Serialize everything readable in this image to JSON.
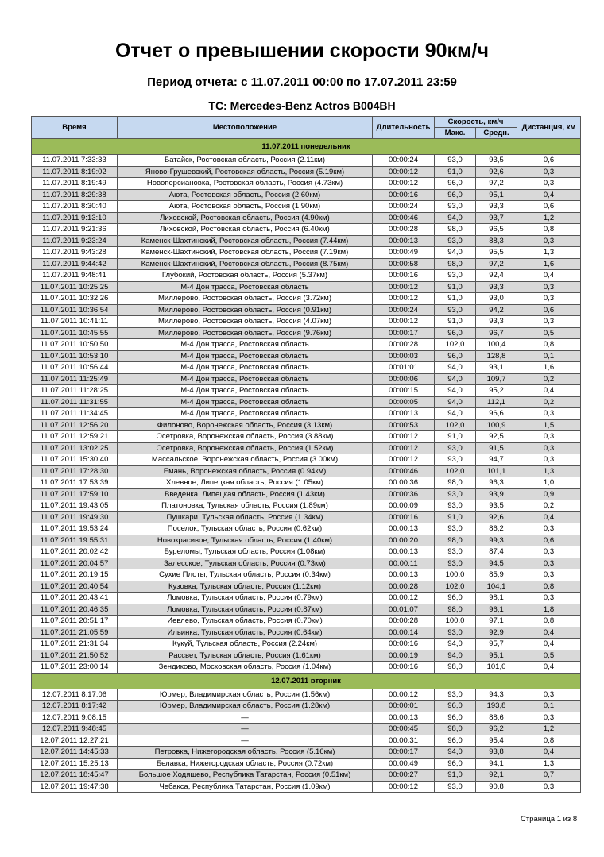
{
  "title": "Отчет о превышении скорости 90км/ч",
  "period": "Период отчета: с 11.07.2011 00:00 по 17.07.2011 23:59",
  "vehicle": "ТС: Mercedes-Benz Actros B004BH",
  "colors": {
    "header_bg": "#c6d9f0",
    "group_bg": "#9bbb59",
    "alt_row_bg": "#d9d9d9"
  },
  "columns": {
    "time": "Время",
    "location": "Местоположение",
    "duration": "Длительность",
    "speed": "Скорость, км/ч",
    "max": "Макс.",
    "avg": "Средн.",
    "distance": "Дистанция, км"
  },
  "groups": [
    {
      "label": "11.07.2011 понедельник",
      "rows": [
        [
          "11.07.2011 7:33:33",
          "Батайск, Ростовская область, Россия (2.11км)",
          "00:00:24",
          "93,0",
          "93,5",
          "0,6"
        ],
        [
          "11.07.2011 8:19:02",
          "Янов­о-Грушевский, Ростовская область, Россия (5.19км)",
          "00:00:12",
          "91,0",
          "92,6",
          "0,3"
        ],
        [
          "11.07.2011 8:19:49",
          "Новоперсиановка, Ростовская область, Россия (4.73км)",
          "00:00:12",
          "96,0",
          "97,2",
          "0,3"
        ],
        [
          "11.07.2011 8:29:38",
          "Аюта, Ростовская область, Россия (2.60км)",
          "00:00:16",
          "96,0",
          "95,1",
          "0,4"
        ],
        [
          "11.07.2011 8:30:40",
          "Аюта, Ростовская область, Россия (1.90км)",
          "00:00:24",
          "93,0",
          "93,3",
          "0,6"
        ],
        [
          "11.07.2011 9:13:10",
          "Лиховской, Ростовская область, Россия (4.90км)",
          "00:00:46",
          "94,0",
          "93,7",
          "1,2"
        ],
        [
          "11.07.2011 9:21:36",
          "Лиховской, Ростовская область, Россия (6.40км)",
          "00:00:28",
          "98,0",
          "96,5",
          "0,8"
        ],
        [
          "11.07.2011 9:23:24",
          "Каменск-Шахтинский, Ростовская область, Россия (7.44км)",
          "00:00:13",
          "93,0",
          "88,3",
          "0,3"
        ],
        [
          "11.07.2011 9:43:28",
          "Каменск-Шахтинский, Ростовская область, Россия (7.19км)",
          "00:00:49",
          "94,0",
          "95,5",
          "1,3"
        ],
        [
          "11.07.2011 9:44:42",
          "Каменск-Шахтинский, Ростовская область, Россия (8.75км)",
          "00:00:58",
          "98,0",
          "97,2",
          "1,6"
        ],
        [
          "11.07.2011 9:48:41",
          "Глубокий, Ростовская область, Россия (5.37км)",
          "00:00:16",
          "93,0",
          "92,4",
          "0,4"
        ],
        [
          "11.07.2011 10:25:25",
          "М-4 Дон трасса, Ростовская область",
          "00:00:12",
          "91,0",
          "93,3",
          "0,3"
        ],
        [
          "11.07.2011 10:32:26",
          "Миллерово, Ростовская область, Россия (3.72км)",
          "00:00:12",
          "91,0",
          "93,0",
          "0,3"
        ],
        [
          "11.07.2011 10:36:54",
          "Миллерово, Ростовская область, Россия (0.91км)",
          "00:00:24",
          "93,0",
          "94,2",
          "0,6"
        ],
        [
          "11.07.2011 10:41:11",
          "Миллерово, Ростовская область, Россия (4.07км)",
          "00:00:12",
          "91,0",
          "93,3",
          "0,3"
        ],
        [
          "11.07.2011 10:45:55",
          "Миллерово, Ростовская область, Россия (9.76км)",
          "00:00:17",
          "96,0",
          "96,7",
          "0,5"
        ],
        [
          "11.07.2011 10:50:50",
          "М-4 Дон трасса, Ростовская область",
          "00:00:28",
          "102,0",
          "100,4",
          "0,8"
        ],
        [
          "11.07.2011 10:53:10",
          "М-4 Дон трасса, Ростовская область",
          "00:00:03",
          "96,0",
          "128,8",
          "0,1"
        ],
        [
          "11.07.2011 10:56:44",
          "М-4 Дон трасса, Ростовская область",
          "00:01:01",
          "94,0",
          "93,1",
          "1,6"
        ],
        [
          "11.07.2011 11:25:49",
          "М-4 Дон трасса, Ростовская область",
          "00:00:06",
          "94,0",
          "109,7",
          "0,2"
        ],
        [
          "11.07.2011 11:28:25",
          "М-4 Дон трасса, Ростовская область",
          "00:00:15",
          "94,0",
          "95,2",
          "0,4"
        ],
        [
          "11.07.2011 11:31:55",
          "М-4 Дон трасса, Ростовская область",
          "00:00:05",
          "94,0",
          "112,1",
          "0,2"
        ],
        [
          "11.07.2011 11:34:45",
          "М-4 Дон трасса, Ростовская область",
          "00:00:13",
          "94,0",
          "96,6",
          "0,3"
        ],
        [
          "11.07.2011 12:56:20",
          "Филоново, Воронежская область, Россия (3.13км)",
          "00:00:53",
          "102,0",
          "100,9",
          "1,5"
        ],
        [
          "11.07.2011 12:59:21",
          "Осетровка, Воронежская область, Россия (3.88км)",
          "00:00:12",
          "91,0",
          "92,5",
          "0,3"
        ],
        [
          "11.07.2011 13:02:25",
          "Осетровка, Воронежская область, Россия (1.52км)",
          "00:00:12",
          "93,0",
          "91,5",
          "0,3"
        ],
        [
          "11.07.2011 15:30:40",
          "Массальское, Воронежская область, Россия (3.00км)",
          "00:00:12",
          "93,0",
          "94,7",
          "0,3"
        ],
        [
          "11.07.2011 17:28:30",
          "Емань, Воронежская область, Россия (0.94км)",
          "00:00:46",
          "102,0",
          "101,1",
          "1,3"
        ],
        [
          "11.07.2011 17:53:39",
          "Хлевное, Липецкая область, Россия (1.05км)",
          "00:00:36",
          "98,0",
          "96,3",
          "1,0"
        ],
        [
          "11.07.2011 17:59:10",
          "Введенка, Липецкая область, Россия (1.43км)",
          "00:00:36",
          "93,0",
          "93,9",
          "0,9"
        ],
        [
          "11.07.2011 19:43:05",
          "Платоновка, Тульская область, Россия (1.89км)",
          "00:00:09",
          "93,0",
          "93,5",
          "0,2"
        ],
        [
          "11.07.2011 19:49:30",
          "Пушкари, Тульская область, Россия (1.34км)",
          "00:00:16",
          "91,0",
          "92,6",
          "0,4"
        ],
        [
          "11.07.2011 19:53:24",
          "Поселок, Тульская область, Россия (0.62км)",
          "00:00:13",
          "93,0",
          "86,2",
          "0,3"
        ],
        [
          "11.07.2011 19:55:31",
          "Новокрасивое, Тульская область, Россия (1.40км)",
          "00:00:20",
          "98,0",
          "99,3",
          "0,6"
        ],
        [
          "11.07.2011 20:02:42",
          "Буреломы, Тульская область, Россия (1.08км)",
          "00:00:13",
          "93,0",
          "87,4",
          "0,3"
        ],
        [
          "11.07.2011 20:04:57",
          "Залесское, Тульская область, Россия (0.73км)",
          "00:00:11",
          "93,0",
          "94,5",
          "0,3"
        ],
        [
          "11.07.2011 20:19:15",
          "Сухие Плоты, Тульская область, Россия (0.34км)",
          "00:00:13",
          "100,0",
          "85,9",
          "0,3"
        ],
        [
          "11.07.2011 20:40:54",
          "Кузовка, Тульская область, Россия (1.12км)",
          "00:00:28",
          "102,0",
          "104,1",
          "0,8"
        ],
        [
          "11.07.2011 20:43:41",
          "Ломовка, Тульская область, Россия (0.79км)",
          "00:00:12",
          "96,0",
          "98,1",
          "0,3"
        ],
        [
          "11.07.2011 20:46:35",
          "Ломовка, Тульская область, Россия (0.87км)",
          "00:01:07",
          "98,0",
          "96,1",
          "1,8"
        ],
        [
          "11.07.2011 20:51:17",
          "Иевлево, Тульская область, Россия (0.70км)",
          "00:00:28",
          "100,0",
          "97,1",
          "0,8"
        ],
        [
          "11.07.2011 21:05:59",
          "Ильинка, Тульская область, Россия (0.64км)",
          "00:00:14",
          "93,0",
          "92,9",
          "0,4"
        ],
        [
          "11.07.2011 21:31:34",
          "Кукуй, Тульская область, Россия (2.24км)",
          "00:00:16",
          "94,0",
          "95,7",
          "0,4"
        ],
        [
          "11.07.2011 21:50:52",
          "Рассвет, Тульская область, Россия (1.61км)",
          "00:00:19",
          "94,0",
          "95,1",
          "0,5"
        ],
        [
          "11.07.2011 23:00:14",
          "Зендиково, Московская область, Россия (1.04км)",
          "00:00:16",
          "98,0",
          "101,0",
          "0,4"
        ]
      ]
    },
    {
      "label": "12.07.2011 вторник",
      "rows": [
        [
          "12.07.2011 8:17:06",
          "Юрмер, Владимирская область, Россия (1.56км)",
          "00:00:12",
          "93,0",
          "94,3",
          "0,3"
        ],
        [
          "12.07.2011 8:17:42",
          "Юрмер, Владимирская область, Россия (1.28км)",
          "00:00:01",
          "96,0",
          "193,8",
          "0,1"
        ],
        [
          "12.07.2011 9:08:15",
          "—",
          "00:00:13",
          "96,0",
          "88,6",
          "0,3"
        ],
        [
          "12.07.2011 9:48:45",
          "—",
          "00:00:45",
          "98,0",
          "96,2",
          "1,2"
        ],
        [
          "12.07.2011 12:27:21",
          "—",
          "00:00:31",
          "96,0",
          "95,4",
          "0,8"
        ],
        [
          "12.07.2011 14:45:33",
          "Петровка, Нижегородская область, Россия (5.16км)",
          "00:00:17",
          "94,0",
          "93,8",
          "0,4"
        ],
        [
          "12.07.2011 15:25:13",
          "Белавка, Нижегородская область, Россия (0.72км)",
          "00:00:49",
          "96,0",
          "94,1",
          "1,3"
        ],
        [
          "12.07.2011 18:45:47",
          "Большое Ходяшево, Республика Татарстан, Россия (0.51км)",
          "00:00:27",
          "91,0",
          "92,1",
          "0,7"
        ],
        [
          "12.07.2011 19:47:38",
          "Чебакса, Республика Татарстан, Россия (1.09км)",
          "00:00:12",
          "93,0",
          "90,8",
          "0,3"
        ]
      ]
    }
  ],
  "footer": "Страница 1 из 8"
}
